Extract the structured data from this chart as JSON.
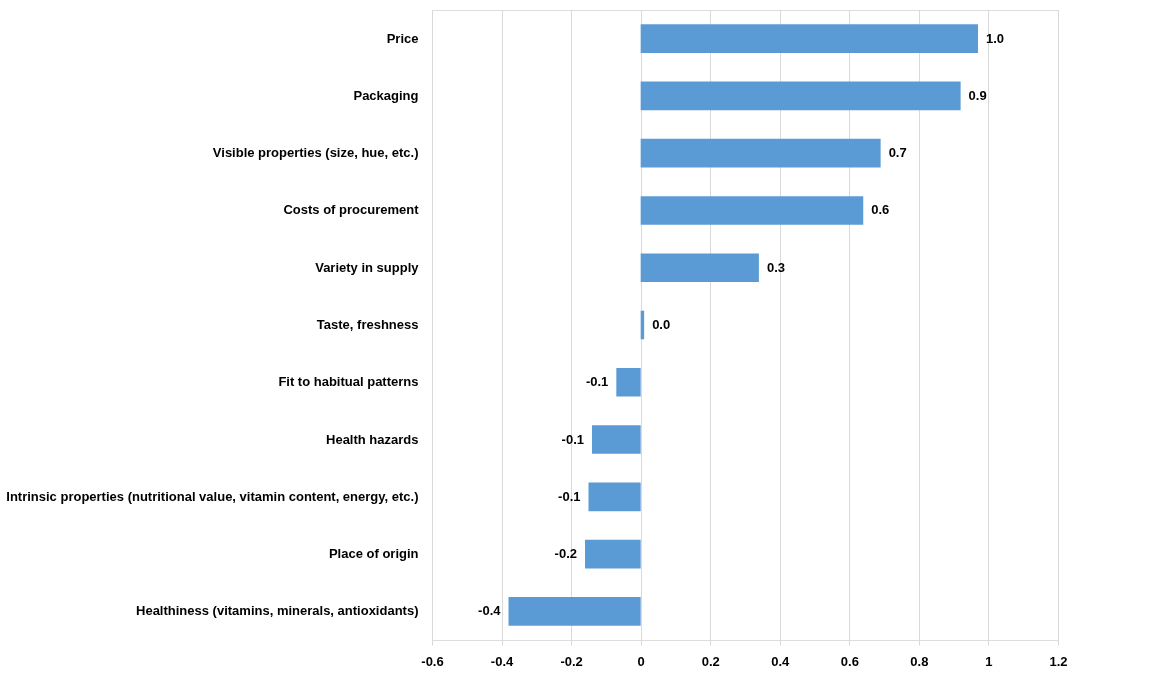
{
  "chart_data": {
    "type": "bar",
    "orientation": "horizontal",
    "categories": [
      "Price",
      "Packaging",
      "Visible properties (size, hue, etc.)",
      "Costs of procurement",
      "Variety in supply",
      "Taste, freshness",
      "Fit to habitual patterns",
      "Health hazards",
      "Intrinsic properties (nutritional value, vitamin content, energy, etc.)",
      "Place of origin",
      "Healthiness (vitamins, minerals, antioxidants)"
    ],
    "values": [
      0.97,
      0.92,
      0.69,
      0.64,
      0.34,
      0.01,
      -0.07,
      -0.14,
      -0.15,
      -0.16,
      -0.38
    ],
    "value_labels": [
      "1.0",
      "0.9",
      "0.7",
      "0.6",
      "0.3",
      "0.0",
      "-0.1",
      "-0.1",
      "-0.1",
      "-0.2",
      "-0.4"
    ],
    "color": "#5b9bd5",
    "xlim": [
      -0.6,
      1.2
    ],
    "xticks": [
      -0.6,
      -0.4,
      -0.2,
      0,
      0.2,
      0.4,
      0.6,
      0.8,
      1,
      1.2
    ],
    "grid": "x"
  }
}
